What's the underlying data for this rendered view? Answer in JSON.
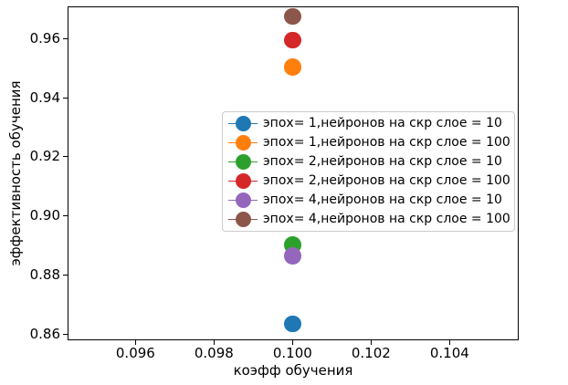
{
  "chart_data": {
    "type": "scatter",
    "title": "",
    "xlabel": "коэфф обучения",
    "ylabel": "эффективность обучения",
    "xlim": [
      0.09427,
      0.10576
    ],
    "ylim": [
      0.8579,
      0.9709
    ],
    "grid": false,
    "background_color": "#ffffff",
    "spine_color": "#000000",
    "xticks": [
      {
        "value": 0.096,
        "label": "0.096"
      },
      {
        "value": 0.098,
        "label": "0.098"
      },
      {
        "value": 0.1,
        "label": "0.100"
      },
      {
        "value": 0.102,
        "label": "0.102"
      },
      {
        "value": 0.104,
        "label": "0.104"
      }
    ],
    "yticks": [
      {
        "value": 0.86,
        "label": "0.86"
      },
      {
        "value": 0.88,
        "label": "0.88"
      },
      {
        "value": 0.9,
        "label": "0.90"
      },
      {
        "value": 0.92,
        "label": "0.92"
      },
      {
        "value": 0.94,
        "label": "0.94"
      },
      {
        "value": 0.96,
        "label": "0.96"
      }
    ],
    "legend": {
      "position": "center-right-inside",
      "border_color": "#cccccc",
      "background_color": "#ffffff"
    },
    "series": [
      {
        "name": "эпох= 1,нейронов на скр слое = 10",
        "color": "#1f77b4",
        "points": [
          {
            "x": 0.1,
            "y": 0.8635
          }
        ]
      },
      {
        "name": "эпох= 1,нейронов на скр слое = 100",
        "color": "#ff7f0e",
        "points": [
          {
            "x": 0.1,
            "y": 0.9503
          }
        ]
      },
      {
        "name": "эпох= 2,нейронов на скр слое = 10",
        "color": "#2ca02c",
        "points": [
          {
            "x": 0.1,
            "y": 0.8902
          }
        ]
      },
      {
        "name": "эпох= 2,нейронов на скр слое = 100",
        "color": "#d62728",
        "points": [
          {
            "x": 0.1,
            "y": 0.9595
          }
        ]
      },
      {
        "name": "эпох= 4,нейронов на скр слое = 10",
        "color": "#9467bd",
        "points": [
          {
            "x": 0.1,
            "y": 0.8864
          }
        ]
      },
      {
        "name": "эпох= 4,нейронов на скр слое = 100",
        "color": "#8c564b",
        "points": [
          {
            "x": 0.1,
            "y": 0.9675
          }
        ]
      }
    ]
  }
}
